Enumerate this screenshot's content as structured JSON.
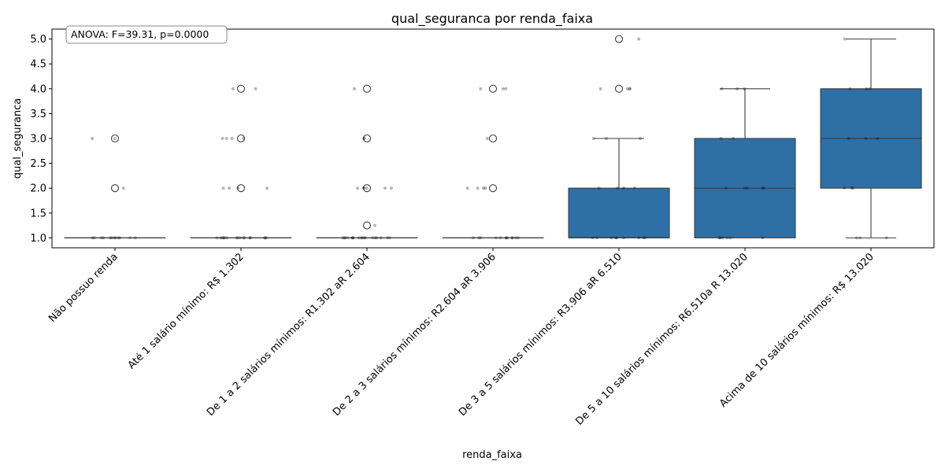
{
  "chart_data": {
    "type": "box",
    "title": "qual_seguranca por renda_faixa",
    "xlabel": "renda_faixa",
    "ylabel": "qual_seguranca",
    "annotation": "ANOVA: F=39.31, p=0.0000",
    "ylim": [
      0.8,
      5.2
    ],
    "yticks": [
      1.0,
      1.5,
      2.0,
      2.5,
      3.0,
      3.5,
      4.0,
      4.5,
      5.0
    ],
    "grid": false,
    "box_color": "#2e6fa6",
    "categories": [
      "Não possuo renda",
      "Até 1 salário mínimo:  R$ 1.302",
      "De 1 a 2 salários mínimos: R1.302 aR 2.604",
      "De 2 a 3 salários mínimos: R2.604 aR 3.906",
      "De 3 a 5 salários mínimos: R3.906 aR 6.510",
      "De 5 a 10 salários mínimos: R6.510a R 13.020",
      "Acima de 10 salários mínimos:  R$ 13.020"
    ],
    "boxes": [
      {
        "q1": 1.0,
        "median": 1.0,
        "q3": 1.0,
        "whislo": 1.0,
        "whishi": 1.0,
        "fliers": [
          2.0,
          3.0
        ]
      },
      {
        "q1": 1.0,
        "median": 1.0,
        "q3": 1.0,
        "whislo": 1.0,
        "whishi": 1.0,
        "fliers": [
          2.0,
          3.0,
          4.0
        ]
      },
      {
        "q1": 1.0,
        "median": 1.0,
        "q3": 1.0,
        "whislo": 1.0,
        "whishi": 1.0,
        "fliers": [
          1.25,
          2.0,
          3.0,
          4.0
        ]
      },
      {
        "q1": 1.0,
        "median": 1.0,
        "q3": 1.0,
        "whislo": 1.0,
        "whishi": 1.0,
        "fliers": [
          2.0,
          3.0,
          4.0
        ]
      },
      {
        "q1": 1.0,
        "median": 1.0,
        "q3": 2.0,
        "whislo": 1.0,
        "whishi": 3.0,
        "fliers": [
          4.0,
          5.0
        ]
      },
      {
        "q1": 1.0,
        "median": 2.0,
        "q3": 3.0,
        "whislo": 1.0,
        "whishi": 4.0,
        "fliers": []
      },
      {
        "q1": 2.0,
        "median": 3.0,
        "q3": 4.0,
        "whislo": 1.0,
        "whishi": 5.0,
        "fliers": []
      }
    ],
    "jitter_points": [
      {
        "values": [
          1,
          1,
          1,
          1,
          1,
          1,
          1,
          1,
          1,
          1,
          1,
          1,
          2,
          3,
          3
        ]
      },
      {
        "values": [
          1,
          1,
          1,
          1,
          1,
          1,
          1,
          1,
          1,
          1,
          1,
          1,
          1,
          1,
          1,
          1,
          2,
          2,
          2,
          2,
          3,
          3,
          3,
          3,
          4,
          4
        ]
      },
      {
        "values": [
          1,
          1,
          1,
          1,
          1,
          1,
          1,
          1,
          1,
          1,
          1,
          1,
          1,
          1,
          1,
          1,
          1,
          1,
          1.25,
          2,
          2,
          2,
          2,
          2,
          2,
          3,
          3,
          4
        ]
      },
      {
        "values": [
          1,
          1,
          1,
          1,
          1,
          1,
          1,
          1,
          1,
          1,
          1,
          1,
          2,
          2,
          2,
          2,
          3,
          4,
          4,
          4
        ]
      },
      {
        "values": [
          1,
          1,
          1,
          1,
          1,
          1,
          1,
          1,
          1,
          2,
          2,
          2,
          2,
          3,
          3,
          3,
          4,
          4,
          4,
          4,
          5
        ]
      },
      {
        "values": [
          1,
          1,
          1,
          1,
          1,
          1,
          2,
          2,
          2,
          2,
          2,
          3,
          3,
          4,
          4,
          4
        ]
      },
      {
        "values": [
          1,
          1,
          1,
          2,
          2,
          2,
          3,
          3,
          3,
          4,
          4,
          4,
          5
        ]
      }
    ]
  }
}
